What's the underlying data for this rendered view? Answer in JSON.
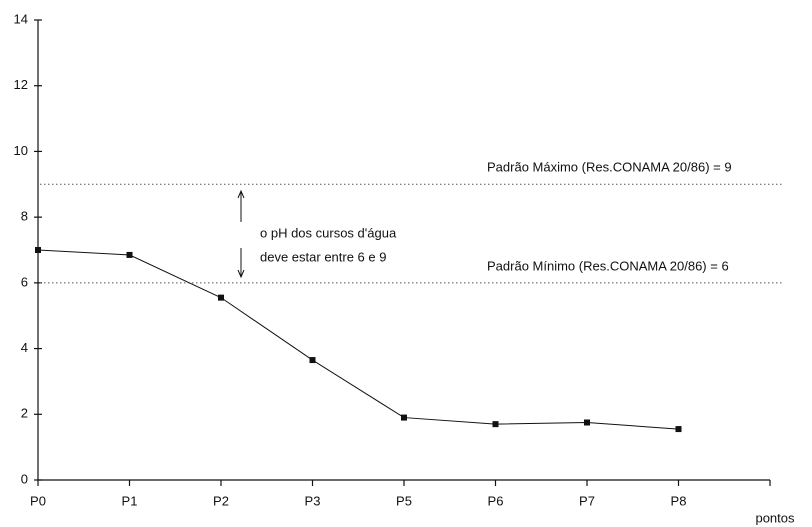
{
  "chart_data": {
    "type": "line",
    "categories": [
      "P0",
      "P1",
      "P2",
      "P3",
      "P5",
      "P6",
      "P7",
      "P8"
    ],
    "series": [
      {
        "name": "pH",
        "color": "#111111",
        "values": [
          7.0,
          6.85,
          5.55,
          3.65,
          1.9,
          1.7,
          1.75,
          1.55
        ]
      }
    ],
    "ylim": [
      0,
      14
    ],
    "yticks": [
      0,
      2,
      4,
      6,
      8,
      10,
      12,
      14
    ],
    "x_label": "pontos",
    "reference_lines": [
      {
        "value": 9,
        "label": "Padrão Máximo (Res.CONAMA 20/86) = 9"
      },
      {
        "value": 6,
        "label": "Padrão Mínimo (Res.CONAMA 20/86) = 6"
      }
    ],
    "annotation": [
      "o pH dos cursos d'água",
      "deve estar entre 6 e 9"
    ]
  }
}
